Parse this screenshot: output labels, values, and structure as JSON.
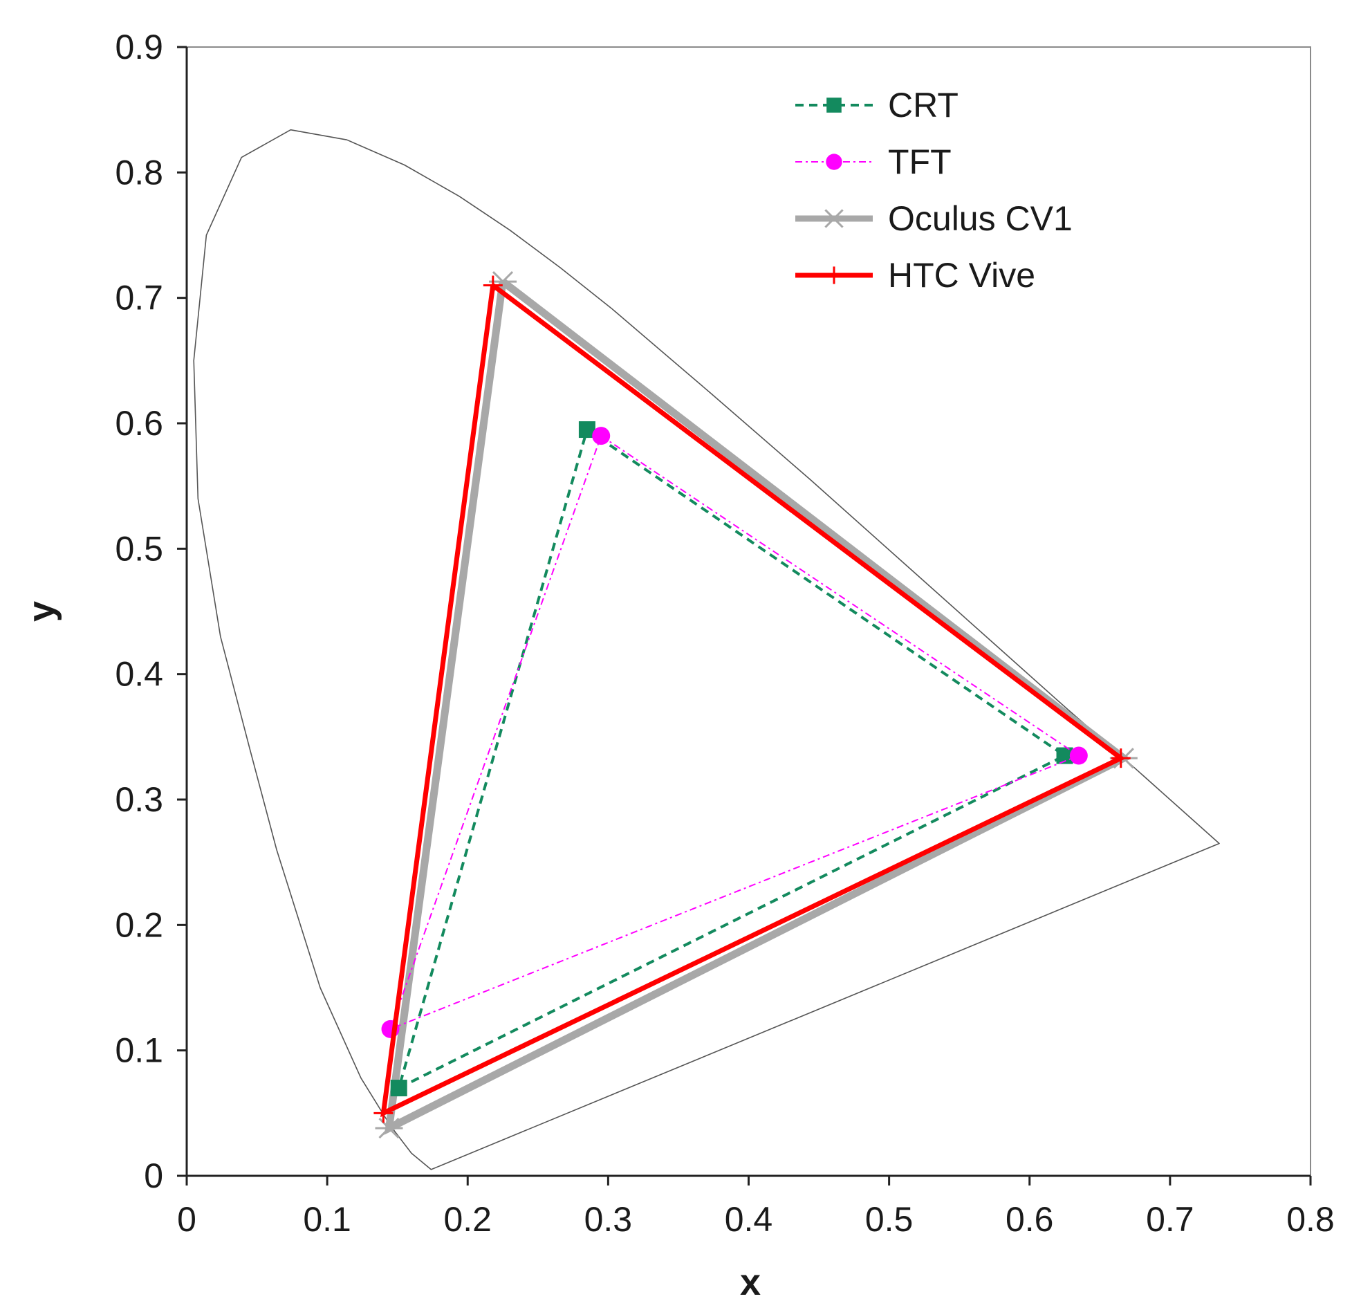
{
  "chart_data": {
    "type": "scatter",
    "title": "",
    "xlabel": "x",
    "ylabel": "y",
    "xlim": [
      0,
      0.8
    ],
    "ylim": [
      0,
      0.9
    ],
    "xticks": [
      "0",
      "0.1",
      "0.2",
      "0.3",
      "0.4",
      "0.5",
      "0.6",
      "0.7",
      "0.8"
    ],
    "yticks": [
      "0",
      "0.1",
      "0.2",
      "0.3",
      "0.4",
      "0.5",
      "0.6",
      "0.7",
      "0.8",
      "0.9"
    ],
    "grid": false,
    "legend_position": "top-right",
    "spectral_locus": {
      "color": "#555555",
      "points": [
        [
          0.174,
          0.005
        ],
        [
          0.16,
          0.018
        ],
        [
          0.145,
          0.04
        ],
        [
          0.124,
          0.078
        ],
        [
          0.095,
          0.15
        ],
        [
          0.064,
          0.26
        ],
        [
          0.045,
          0.34
        ],
        [
          0.024,
          0.43
        ],
        [
          0.008,
          0.54
        ],
        [
          0.005,
          0.65
        ],
        [
          0.014,
          0.75
        ],
        [
          0.039,
          0.812
        ],
        [
          0.074,
          0.834
        ],
        [
          0.114,
          0.826
        ],
        [
          0.155,
          0.806
        ],
        [
          0.194,
          0.781
        ],
        [
          0.23,
          0.754
        ],
        [
          0.266,
          0.724
        ],
        [
          0.302,
          0.692
        ],
        [
          0.373,
          0.624
        ],
        [
          0.444,
          0.555
        ],
        [
          0.512,
          0.487
        ],
        [
          0.575,
          0.424
        ],
        [
          0.627,
          0.372
        ],
        [
          0.666,
          0.334
        ],
        [
          0.692,
          0.308
        ],
        [
          0.714,
          0.286
        ],
        [
          0.735,
          0.265
        ]
      ],
      "closed": true
    },
    "series": [
      {
        "name": "CRT",
        "color": "#138a5e",
        "marker": "square",
        "line": "dashed",
        "points": [
          [
            0.285,
            0.595
          ],
          [
            0.625,
            0.335
          ],
          [
            0.151,
            0.07
          ]
        ]
      },
      {
        "name": "TFT",
        "color": "#ff00ff",
        "marker": "circle",
        "line": "dashdot",
        "points": [
          [
            0.295,
            0.59
          ],
          [
            0.635,
            0.335
          ],
          [
            0.145,
            0.117
          ]
        ]
      },
      {
        "name": "Oculus CV1",
        "color": "#a8a8a8",
        "marker": "asterisk",
        "line": "solid-thick",
        "points": [
          [
            0.225,
            0.713
          ],
          [
            0.667,
            0.333
          ],
          [
            0.144,
            0.038
          ]
        ]
      },
      {
        "name": "HTC Vive",
        "color": "#ff0000",
        "marker": "plus",
        "line": "solid",
        "points": [
          [
            0.218,
            0.71
          ],
          [
            0.665,
            0.333
          ],
          [
            0.14,
            0.05
          ]
        ]
      }
    ]
  }
}
